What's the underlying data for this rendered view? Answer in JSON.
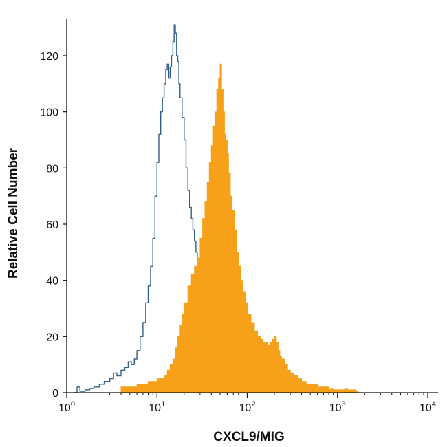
{
  "chart_data": {
    "type": "histogram",
    "xlabel": "CXCL9/MIG",
    "ylabel": "Relative Cell Number",
    "x_scale": "log",
    "xlim": [
      1,
      10000
    ],
    "ylim": [
      0,
      132
    ],
    "x_ticks": [
      {
        "value": 1,
        "base": "10",
        "exp": "0"
      },
      {
        "value": 10,
        "base": "10",
        "exp": "1"
      },
      {
        "value": 100,
        "base": "10",
        "exp": "2"
      },
      {
        "value": 1000,
        "base": "10",
        "exp": "3"
      },
      {
        "value": 10000,
        "base": "10",
        "exp": "4"
      }
    ],
    "y_ticks": [
      "0",
      "20",
      "40",
      "60",
      "80",
      "100",
      "120"
    ],
    "grid": false,
    "legend": "none",
    "series": [
      {
        "style": "outline",
        "color": "#2e5f8a",
        "points": [
          [
            1.2,
            0
          ],
          [
            1.3,
            2
          ],
          [
            1.4,
            0.5
          ],
          [
            1.6,
            1
          ],
          [
            1.8,
            1.5
          ],
          [
            2,
            2
          ],
          [
            2.3,
            3
          ],
          [
            2.6,
            4
          ],
          [
            3,
            5
          ],
          [
            3.3,
            7
          ],
          [
            3.6,
            6
          ],
          [
            4,
            8
          ],
          [
            4.4,
            9
          ],
          [
            4.8,
            11
          ],
          [
            5.2,
            10
          ],
          [
            5.6,
            12
          ],
          [
            6,
            15
          ],
          [
            6.5,
            20
          ],
          [
            7,
            25
          ],
          [
            7.5,
            32
          ],
          [
            8,
            38
          ],
          [
            8.5,
            45
          ],
          [
            9,
            55
          ],
          [
            9.5,
            70
          ],
          [
            10,
            82
          ],
          [
            10.5,
            92
          ],
          [
            11,
            100
          ],
          [
            11.5,
            105
          ],
          [
            12,
            110
          ],
          [
            12.5,
            115
          ],
          [
            13,
            117
          ],
          [
            13.5,
            112
          ],
          [
            14,
            116
          ],
          [
            14.5,
            120
          ],
          [
            15,
            125
          ],
          [
            15.5,
            131
          ],
          [
            16,
            128
          ],
          [
            16.5,
            120
          ],
          [
            17,
            118
          ],
          [
            17.5,
            110
          ],
          [
            18,
            105
          ],
          [
            19,
            98
          ],
          [
            20,
            90
          ],
          [
            21,
            80
          ],
          [
            22,
            72
          ],
          [
            23,
            66
          ],
          [
            24,
            62
          ],
          [
            25,
            58
          ],
          [
            26,
            54
          ],
          [
            27,
            50
          ],
          [
            28,
            42
          ],
          [
            29,
            30
          ],
          [
            30,
            18
          ],
          [
            31,
            8
          ],
          [
            32,
            3
          ],
          [
            34,
            0
          ]
        ]
      },
      {
        "style": "filled",
        "color": "#f7a11a",
        "points": [
          [
            3.8,
            0
          ],
          [
            4,
            2
          ],
          [
            5,
            2
          ],
          [
            6,
            3
          ],
          [
            7,
            3
          ],
          [
            8,
            4
          ],
          [
            9,
            4
          ],
          [
            10,
            5
          ],
          [
            11,
            5
          ],
          [
            12,
            6
          ],
          [
            13,
            8
          ],
          [
            14,
            10
          ],
          [
            15,
            12
          ],
          [
            16,
            16
          ],
          [
            17,
            20
          ],
          [
            18,
            24
          ],
          [
            19,
            28
          ],
          [
            20,
            32
          ],
          [
            22,
            38
          ],
          [
            24,
            42
          ],
          [
            26,
            45
          ],
          [
            28,
            48
          ],
          [
            30,
            55
          ],
          [
            32,
            62
          ],
          [
            34,
            68
          ],
          [
            36,
            75
          ],
          [
            38,
            82
          ],
          [
            40,
            88
          ],
          [
            42,
            95
          ],
          [
            44,
            100
          ],
          [
            46,
            108
          ],
          [
            48,
            112
          ],
          [
            50,
            117
          ],
          [
            52,
            108
          ],
          [
            54,
            100
          ],
          [
            56,
            92
          ],
          [
            58,
            90
          ],
          [
            60,
            85
          ],
          [
            62,
            78
          ],
          [
            65,
            70
          ],
          [
            68,
            65
          ],
          [
            72,
            58
          ],
          [
            76,
            50
          ],
          [
            80,
            45
          ],
          [
            85,
            40
          ],
          [
            90,
            36
          ],
          [
            95,
            32
          ],
          [
            100,
            28
          ],
          [
            110,
            25
          ],
          [
            120,
            22
          ],
          [
            130,
            20
          ],
          [
            140,
            19
          ],
          [
            150,
            18
          ],
          [
            160,
            18
          ],
          [
            170,
            17
          ],
          [
            180,
            18
          ],
          [
            190,
            19
          ],
          [
            200,
            20
          ],
          [
            210,
            18
          ],
          [
            220,
            15
          ],
          [
            230,
            13
          ],
          [
            240,
            12
          ],
          [
            260,
            10
          ],
          [
            280,
            8
          ],
          [
            300,
            7
          ],
          [
            330,
            6
          ],
          [
            360,
            5
          ],
          [
            400,
            4
          ],
          [
            450,
            3
          ],
          [
            500,
            3
          ],
          [
            600,
            2
          ],
          [
            700,
            2
          ],
          [
            800,
            1.5
          ],
          [
            900,
            1
          ],
          [
            1000,
            1
          ],
          [
            1100,
            1
          ],
          [
            1200,
            1.5
          ],
          [
            1300,
            1
          ],
          [
            1400,
            1
          ],
          [
            1500,
            1
          ],
          [
            1600,
            0.5
          ],
          [
            1700,
            0
          ]
        ]
      }
    ]
  }
}
